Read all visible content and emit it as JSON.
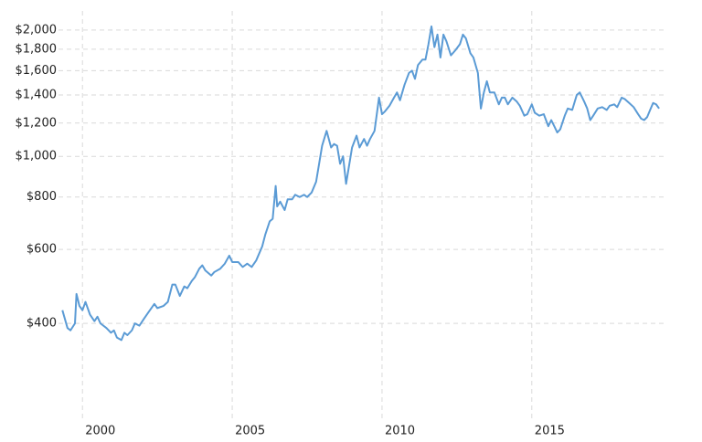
{
  "chart_data": {
    "type": "line",
    "log_y": true,
    "grid": true,
    "x": [
      1999.33,
      1999.5,
      1999.6,
      1999.75,
      1999.8,
      1999.9,
      2000.0,
      2000.1,
      2000.25,
      2000.4,
      2000.5,
      2000.6,
      2000.8,
      2000.95,
      2001.05,
      2001.15,
      2001.3,
      2001.4,
      2001.5,
      2001.65,
      2001.75,
      2001.9,
      2002.05,
      2002.2,
      2002.4,
      2002.5,
      2002.7,
      2002.85,
      2003.0,
      2003.1,
      2003.25,
      2003.4,
      2003.5,
      2003.65,
      2003.75,
      2003.9,
      2004.0,
      2004.1,
      2004.3,
      2004.4,
      2004.6,
      2004.75,
      2004.9,
      2005.0,
      2005.2,
      2005.35,
      2005.5,
      2005.65,
      2005.8,
      2006.0,
      2006.1,
      2006.25,
      2006.35,
      2006.45,
      2006.5,
      2006.6,
      2006.75,
      2006.85,
      2007.0,
      2007.1,
      2007.25,
      2007.4,
      2007.5,
      2007.65,
      2007.8,
      2007.9,
      2008.0,
      2008.15,
      2008.3,
      2008.4,
      2008.5,
      2008.6,
      2008.7,
      2008.8,
      2008.9,
      2009.0,
      2009.15,
      2009.25,
      2009.4,
      2009.5,
      2009.6,
      2009.75,
      2009.9,
      2010.0,
      2010.1,
      2010.25,
      2010.4,
      2010.5,
      2010.6,
      2010.75,
      2010.9,
      2011.0,
      2011.1,
      2011.2,
      2011.35,
      2011.45,
      2011.55,
      2011.65,
      2011.75,
      2011.85,
      2011.95,
      2012.05,
      2012.15,
      2012.3,
      2012.45,
      2012.6,
      2012.7,
      2012.8,
      2012.95,
      2013.05,
      2013.2,
      2013.3,
      2013.4,
      2013.5,
      2013.6,
      2013.75,
      2013.9,
      2014.0,
      2014.1,
      2014.2,
      2014.35,
      2014.5,
      2014.6,
      2014.75,
      2014.85,
      2015.0,
      2015.1,
      2015.25,
      2015.4,
      2015.55,
      2015.65,
      2015.75,
      2015.85,
      2015.95,
      2016.1,
      2016.2,
      2016.35,
      2016.5,
      2016.6,
      2016.75,
      2016.85,
      2016.95,
      2017.05,
      2017.2,
      2017.35,
      2017.5,
      2017.6,
      2017.75,
      2017.85,
      2018.0,
      2018.1,
      2018.25,
      2018.4,
      2018.55,
      2018.65,
      2018.75,
      2018.85,
      2018.95,
      2019.05,
      2019.15,
      2019.25
    ],
    "series": [
      {
        "color": "#5b9bd5",
        "values": [
          430,
          390,
          385,
          400,
          470,
          440,
          430,
          450,
          420,
          405,
          415,
          400,
          390,
          380,
          385,
          370,
          365,
          380,
          375,
          385,
          400,
          395,
          410,
          425,
          445,
          435,
          440,
          450,
          495,
          495,
          465,
          490,
          485,
          505,
          515,
          540,
          550,
          535,
          520,
          530,
          540,
          555,
          580,
          560,
          560,
          545,
          555,
          545,
          565,
          610,
          650,
          700,
          710,
          850,
          760,
          780,
          745,
          790,
          790,
          810,
          800,
          810,
          800,
          820,
          870,
          960,
          1060,
          1150,
          1050,
          1070,
          1060,
          960,
          1000,
          860,
          950,
          1050,
          1120,
          1050,
          1100,
          1060,
          1100,
          1150,
          1380,
          1260,
          1280,
          1320,
          1380,
          1420,
          1360,
          1480,
          1580,
          1600,
          1530,
          1650,
          1700,
          1700,
          1850,
          2040,
          1820,
          1950,
          1720,
          1950,
          1880,
          1740,
          1790,
          1850,
          1950,
          1910,
          1760,
          1720,
          1580,
          1300,
          1420,
          1510,
          1420,
          1420,
          1330,
          1380,
          1380,
          1330,
          1380,
          1350,
          1320,
          1250,
          1260,
          1330,
          1270,
          1250,
          1260,
          1180,
          1220,
          1180,
          1140,
          1160,
          1250,
          1300,
          1290,
          1400,
          1420,
          1350,
          1300,
          1220,
          1250,
          1300,
          1310,
          1290,
          1320,
          1330,
          1310,
          1380,
          1370,
          1340,
          1310,
          1260,
          1230,
          1220,
          1240,
          1290,
          1340,
          1330,
          1300
        ]
      }
    ],
    "xlim": [
      1999.2,
      2019.4
    ],
    "xticks": [
      2000,
      2005,
      2010,
      2015
    ],
    "ylim": [
      233,
      2220
    ],
    "yticks": [
      {
        "value": 400,
        "label": "$400"
      },
      {
        "value": 600,
        "label": "$600"
      },
      {
        "value": 800,
        "label": "$800"
      },
      {
        "value": 1000,
        "label": "$1,000"
      },
      {
        "value": 1200,
        "label": "$1,200"
      },
      {
        "value": 1400,
        "label": "$1,400"
      },
      {
        "value": 1600,
        "label": "$1,600"
      },
      {
        "value": 1800,
        "label": "$1,800"
      },
      {
        "value": 2000,
        "label": "$2,000"
      }
    ]
  }
}
